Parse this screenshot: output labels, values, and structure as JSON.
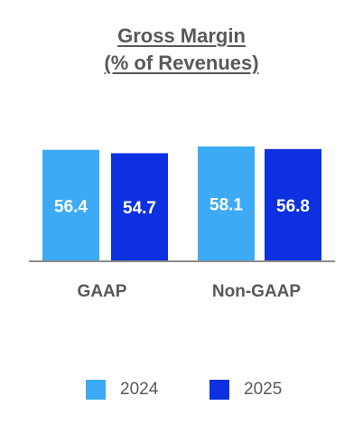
{
  "chart_data": {
    "type": "bar",
    "title_lines": [
      "Gross Margin",
      "(% of Revenues)"
    ],
    "categories": [
      "GAAP",
      "Non-GAAP"
    ],
    "series": [
      {
        "name": "2024",
        "values": [
          56.4,
          58.1
        ],
        "color": "#3daaf5"
      },
      {
        "name": "2025",
        "values": [
          54.7,
          56.8
        ],
        "color": "#0d31e0"
      }
    ],
    "data_labels": [
      [
        "56.4",
        "58.1"
      ],
      [
        "54.7",
        "56.8"
      ]
    ],
    "legend_position": "bottom",
    "grid": false,
    "axis_color": "#8c8c8c",
    "label_color": "#ffffff",
    "text_color": "#595959"
  }
}
